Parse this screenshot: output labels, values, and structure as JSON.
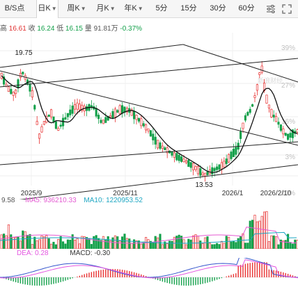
{
  "tabs": [
    {
      "label": "B/S点",
      "active": false
    },
    {
      "label": "日K",
      "active": true
    },
    {
      "label": "周K",
      "active": false
    },
    {
      "label": "月K",
      "active": false
    },
    {
      "label": "年K",
      "active": false
    },
    {
      "label": "5分",
      "active": false
    },
    {
      "label": "15分",
      "active": false
    },
    {
      "label": "30分",
      "active": false
    },
    {
      "label": "60分",
      "active": false
    }
  ],
  "toolbar_icons": [
    "sliders-icon",
    "fullscreen-icon"
  ],
  "quote": {
    "high_label": "高",
    "high": "16.61",
    "close_label": "收",
    "close": "16.24",
    "low_label": "低",
    "low": "16.15",
    "vol_label": "量",
    "volume": "91.81万",
    "change": "-0.37%"
  },
  "price_chart": {
    "high_mark": "19.75",
    "low_mark": "13.53",
    "pct_labels": [
      "39%",
      "27%",
      "16%",
      "3%",
      "-10%"
    ],
    "x_labels": [
      "2025/9",
      "2025/11",
      "2026/1",
      "2026/2/10"
    ],
    "watermark": "新浪财经"
  },
  "volume_legend": {
    "vol": "9.58",
    "ma5": "MA5: 936210.33",
    "ma10": "MA10: 1220953.52"
  },
  "macd_legend": {
    "dea": "DEA: 0.28",
    "macd": "MACD: -0.30"
  },
  "colors": {
    "up": "#e83030",
    "down": "#13a04a",
    "ma5": "#e45ad2",
    "ma10": "#1da6c2",
    "dif": "#3355cc",
    "dea": "#e455e0"
  }
}
